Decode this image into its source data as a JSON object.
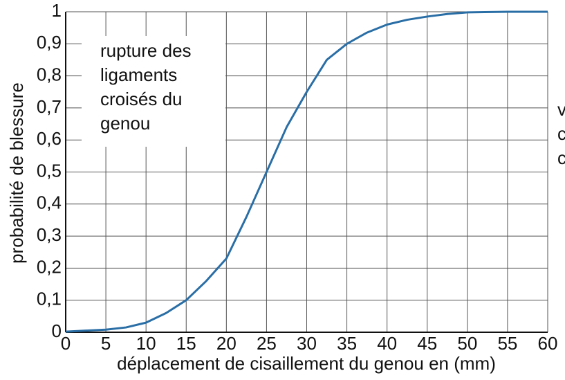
{
  "chart_data": {
    "type": "line",
    "annotation": [
      "rupture des",
      "ligaments",
      "croisés du",
      "genou"
    ],
    "side_text": [
      "v",
      "c",
      "c"
    ],
    "x_label": "déplacement de cisaillement du genou en (mm)",
    "y_label": "probabilité de blessure",
    "x": [
      0,
      2.5,
      5,
      7.5,
      10,
      12.5,
      15,
      17.5,
      20,
      22.5,
      25,
      27.5,
      30,
      32.5,
      35,
      37.5,
      40,
      42.5,
      45,
      47.5,
      50,
      55,
      60
    ],
    "series": [
      {
        "color": "#2a6ea6",
        "values": [
          0.002,
          0.005,
          0.008,
          0.015,
          0.03,
          0.06,
          0.1,
          0.16,
          0.23,
          0.36,
          0.5,
          0.64,
          0.75,
          0.85,
          0.9,
          0.935,
          0.96,
          0.975,
          0.985,
          0.993,
          0.998,
          1,
          1
        ]
      }
    ],
    "xlim": [
      0,
      60
    ],
    "xticks": [
      0,
      5,
      10,
      15,
      20,
      25,
      30,
      35,
      40,
      45,
      50,
      55,
      60
    ],
    "ylim": [
      0,
      1
    ],
    "yticks": [
      0,
      {
        "value": 0.1,
        "label": "0,1"
      },
      {
        "value": 0.2,
        "label": "0,2"
      },
      {
        "value": 0.3,
        "label": "0,3"
      },
      {
        "value": 0.4,
        "label": "0,4"
      },
      {
        "value": 0.5,
        "label": "0,5"
      },
      {
        "value": 0.6,
        "label": "0,6"
      },
      {
        "value": 0.7,
        "label": "0,7"
      },
      {
        "value": 0.8,
        "label": "0,8"
      },
      {
        "value": 0.9,
        "label": "0,9"
      },
      1
    ],
    "grid": true
  }
}
